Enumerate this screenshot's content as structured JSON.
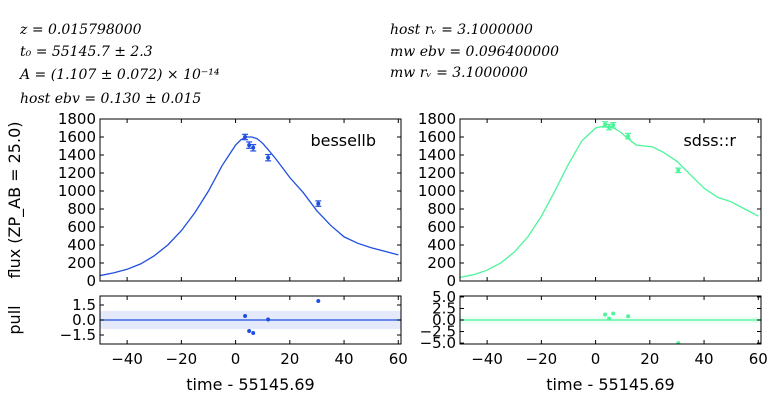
{
  "params": {
    "left": [
      "z = 0.015798000",
      "t₀ = 55145.7 ± 2.3",
      "A = (1.107 ± 0.072) × 10⁻¹⁴",
      "host ebv = 0.130 ± 0.015"
    ],
    "right": [
      "host rᵥ = 3.1000000",
      "mw ebv = 0.096400000",
      "mw rᵥ = 3.1000000"
    ]
  },
  "chart_data": [
    {
      "type": "line",
      "panel": "flux",
      "band": "bessellb",
      "color": "#1f4fe0",
      "xlabel": "",
      "ylabel": "flux (ZP_AB = 25.0)",
      "xlim": [
        -50,
        61
      ],
      "ylim": [
        0,
        1800
      ],
      "yticks": [
        0,
        200,
        400,
        600,
        800,
        1000,
        1200,
        1400,
        1600,
        1800
      ],
      "xticks": [
        -40,
        -20,
        0,
        20,
        40,
        60
      ],
      "model": {
        "x": [
          -50,
          -45,
          -40,
          -35,
          -30,
          -25,
          -20,
          -15,
          -10,
          -5,
          0,
          2,
          4,
          6,
          8,
          10,
          12,
          15,
          20,
          25,
          30,
          35,
          40,
          45,
          50,
          55,
          60
        ],
        "y": [
          60,
          90,
          130,
          190,
          280,
          400,
          560,
          760,
          1000,
          1280,
          1510,
          1570,
          1600,
          1600,
          1580,
          1530,
          1460,
          1350,
          1150,
          980,
          780,
          620,
          490,
          420,
          370,
          330,
          290
        ]
      },
      "points": [
        {
          "x": 3.5,
          "y": 1600,
          "err": 30
        },
        {
          "x": 5.0,
          "y": 1510,
          "err": 35
        },
        {
          "x": 6.5,
          "y": 1480,
          "err": 35
        },
        {
          "x": 12.0,
          "y": 1370,
          "err": 35
        },
        {
          "x": 30.5,
          "y": 860,
          "err": 30
        }
      ]
    },
    {
      "type": "line",
      "panel": "flux",
      "band": "sdss::r",
      "color": "#4cf59a",
      "xlabel": "",
      "ylabel": "",
      "xlim": [
        -50,
        61
      ],
      "ylim": [
        0,
        1800
      ],
      "yticks": [
        0,
        200,
        400,
        600,
        800,
        1000,
        1200,
        1400,
        1600,
        1800
      ],
      "xticks": [
        -40,
        -20,
        0,
        20,
        40,
        60
      ],
      "model": {
        "x": [
          -50,
          -45,
          -40,
          -35,
          -30,
          -25,
          -20,
          -15,
          -10,
          -5,
          0,
          3,
          6,
          9,
          12,
          15,
          18,
          21,
          25,
          30,
          35,
          40,
          45,
          50,
          55,
          60
        ],
        "y": [
          40,
          70,
          120,
          200,
          320,
          490,
          720,
          1000,
          1300,
          1560,
          1700,
          1720,
          1710,
          1660,
          1580,
          1510,
          1500,
          1490,
          1430,
          1330,
          1180,
          1030,
          930,
          880,
          800,
          720
        ]
      },
      "points": [
        {
          "x": 3.5,
          "y": 1740,
          "err": 30
        },
        {
          "x": 5.0,
          "y": 1710,
          "err": 30
        },
        {
          "x": 6.5,
          "y": 1730,
          "err": 30
        },
        {
          "x": 12.0,
          "y": 1610,
          "err": 30
        },
        {
          "x": 30.5,
          "y": 1230,
          "err": 25
        }
      ]
    },
    {
      "type": "scatter",
      "panel": "pull",
      "color": "#1f4fe0",
      "xlabel": "time - 55145.69",
      "ylabel": "pull",
      "xlim": [
        -50,
        61
      ],
      "ylim": [
        -2.4,
        2.4
      ],
      "yticks": [
        -1.5,
        0.0,
        1.5
      ],
      "ytick_labels": [
        "−1.5",
        "0.0",
        "1.5"
      ],
      "xticks": [
        -40,
        -20,
        0,
        20,
        40,
        60
      ],
      "xtick_labels": [
        "−40",
        "−20",
        "0",
        "20",
        "40",
        "60"
      ],
      "band_range": [
        -0.9,
        0.9
      ],
      "points": [
        {
          "x": 3.5,
          "y": 0.4
        },
        {
          "x": 5.0,
          "y": -1.1
        },
        {
          "x": 6.5,
          "y": -1.3
        },
        {
          "x": 12.0,
          "y": 0.05
        },
        {
          "x": 30.5,
          "y": 1.9
        }
      ]
    },
    {
      "type": "scatter",
      "panel": "pull",
      "color": "#4cf59a",
      "xlabel": "time - 55145.69",
      "ylabel": "",
      "xlim": [
        -50,
        61
      ],
      "ylim": [
        -5.2,
        5.2
      ],
      "yticks": [
        -5.0,
        -2.5,
        0.0,
        2.5,
        5.0
      ],
      "ytick_labels": [
        "−5.0",
        "−2.5",
        "0.0",
        "2.5",
        "5.0"
      ],
      "xticks": [
        -40,
        -20,
        0,
        20,
        40,
        60
      ],
      "xtick_labels": [
        "−40",
        "−20",
        "0",
        "20",
        "40",
        "60"
      ],
      "band_range": [
        -0.7,
        0.7
      ],
      "points": [
        {
          "x": 3.5,
          "y": 1.2
        },
        {
          "x": 5.0,
          "y": 0.3
        },
        {
          "x": 6.5,
          "y": 1.4
        },
        {
          "x": 12.0,
          "y": 0.8
        },
        {
          "x": 30.5,
          "y": -5.0
        }
      ]
    }
  ]
}
